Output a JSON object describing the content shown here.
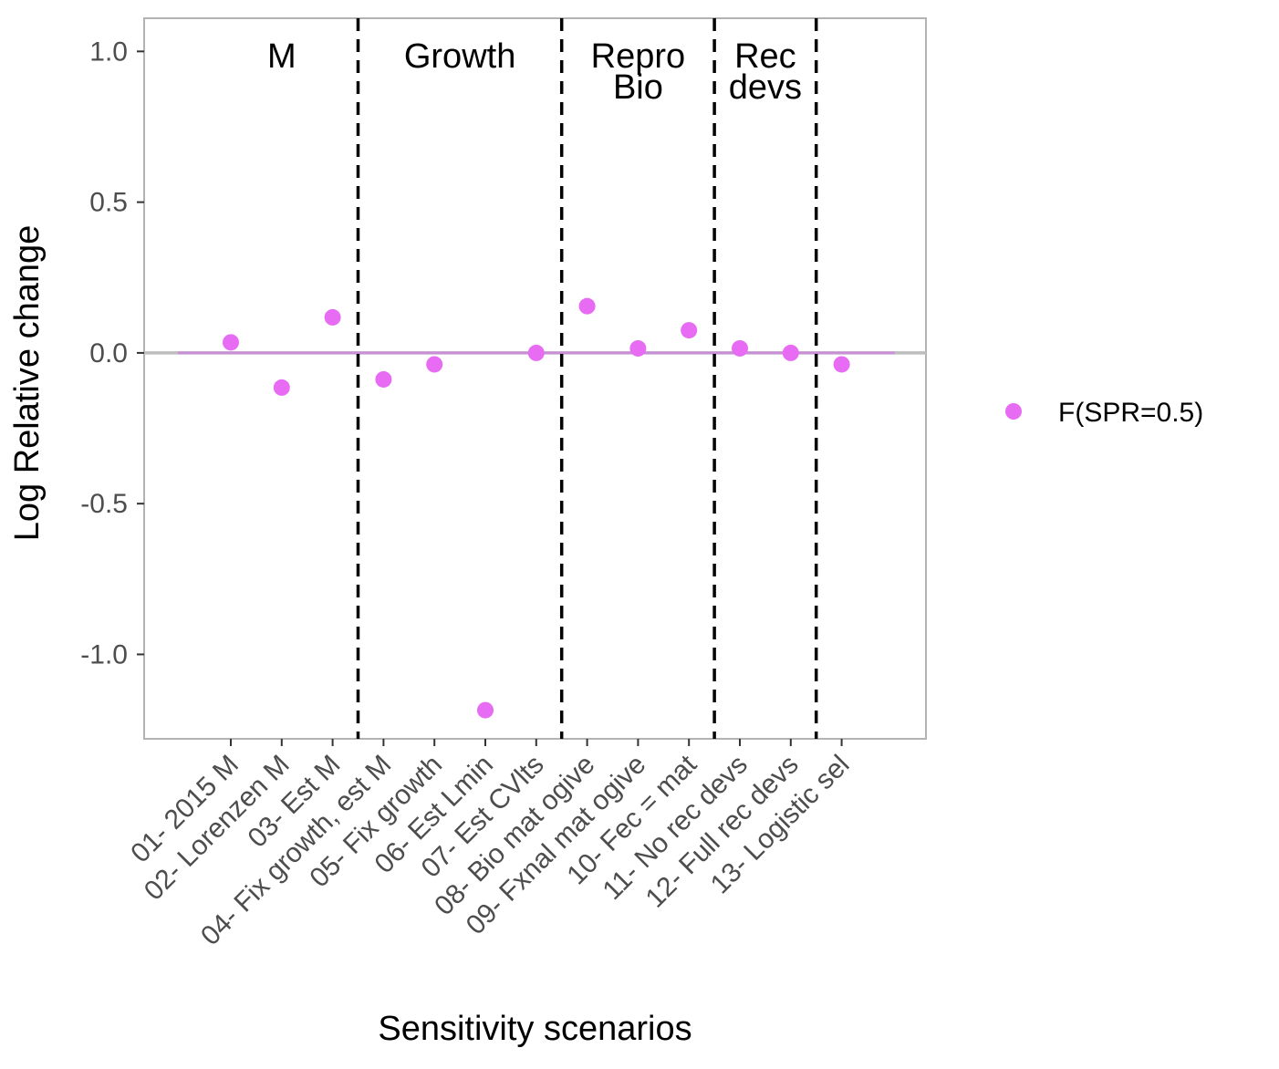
{
  "chart_data": {
    "type": "scatter",
    "title": "",
    "xlabel": "Sensitivity scenarios",
    "ylabel": "Log Relative change",
    "ylim": [
      -1.28,
      1.11
    ],
    "yticks": [
      1.0,
      0.5,
      0.0,
      -0.5,
      -1.0
    ],
    "ytick_labels": [
      "1.0",
      "0.5",
      "0.0",
      "-0.5",
      "-1.0"
    ],
    "categories": [
      "01- 2015 M",
      "02- Lorenzen M",
      "03- Est M",
      "04- Fix growth, est M",
      "05- Fix growth",
      "06- Est Lmin",
      "07- Est CVlts",
      "08- Bio mat ogive",
      "09- Fxnal mat ogive",
      "10- Fec = mat",
      "11- No rec devs",
      "12- Full rec devs",
      "13- Logistic sel"
    ],
    "series": [
      {
        "name": "F(SPR=0.5)",
        "color": "#e76bf3",
        "values": [
          0.035,
          -0.115,
          0.118,
          -0.088,
          -0.038,
          -1.185,
          0.0,
          0.155,
          0.015,
          0.075,
          0.015,
          0.0,
          -0.038
        ]
      }
    ],
    "reference_line": {
      "y": 0.0,
      "color": "#bebebe"
    },
    "baseline_segment": {
      "y": 0.0,
      "color": "#c98fd6"
    },
    "group_dividers_after_index": [
      2,
      6,
      9,
      11
    ],
    "group_labels": [
      {
        "lines": [
          "M"
        ],
        "center_index": 1
      },
      {
        "lines": [
          "Growth"
        ],
        "center_index": 4.5
      },
      {
        "lines": [
          "Repro",
          "Bio"
        ],
        "center_index": 8
      },
      {
        "lines": [
          "Rec",
          "devs"
        ],
        "center_index": 10.5
      }
    ],
    "grid": false,
    "legend_position": "right",
    "panel_border_color": "#b3b3b3"
  }
}
